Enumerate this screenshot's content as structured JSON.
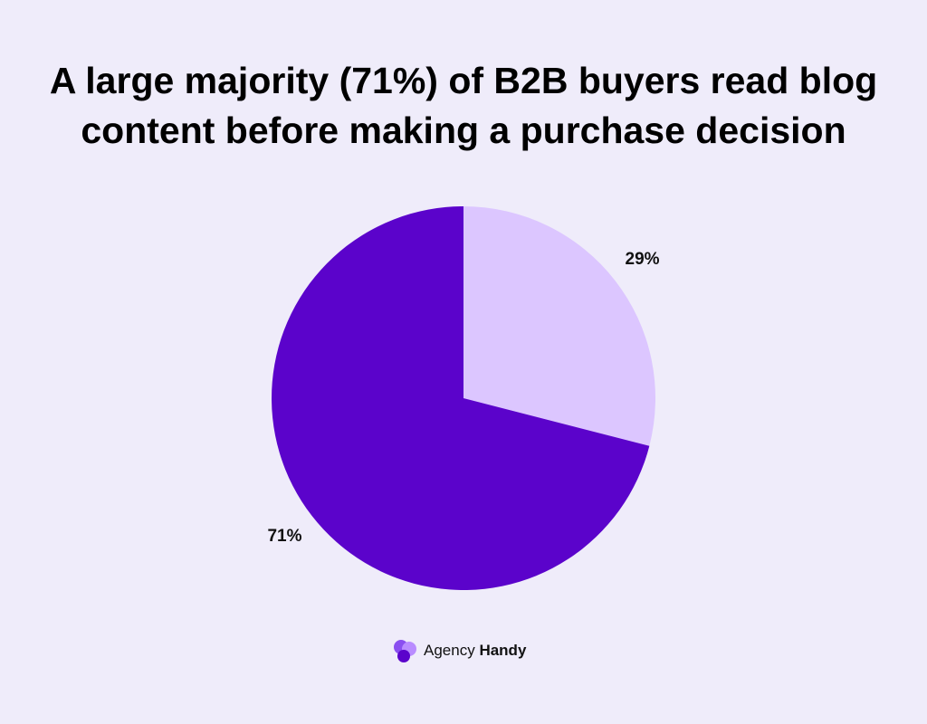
{
  "chart_data": {
    "type": "pie",
    "title": "A large majority (71%) of B2B buyers read blog content before making a purchase decision",
    "values": [
      29,
      71
    ],
    "value_labels": [
      "29%",
      "71%"
    ],
    "colors": [
      "#dcc6ff",
      "#5b03cb"
    ],
    "start_angle": 0,
    "direction": "clockwise"
  },
  "footer": {
    "brand_regular": "Agency",
    "brand_bold": "Handy"
  }
}
